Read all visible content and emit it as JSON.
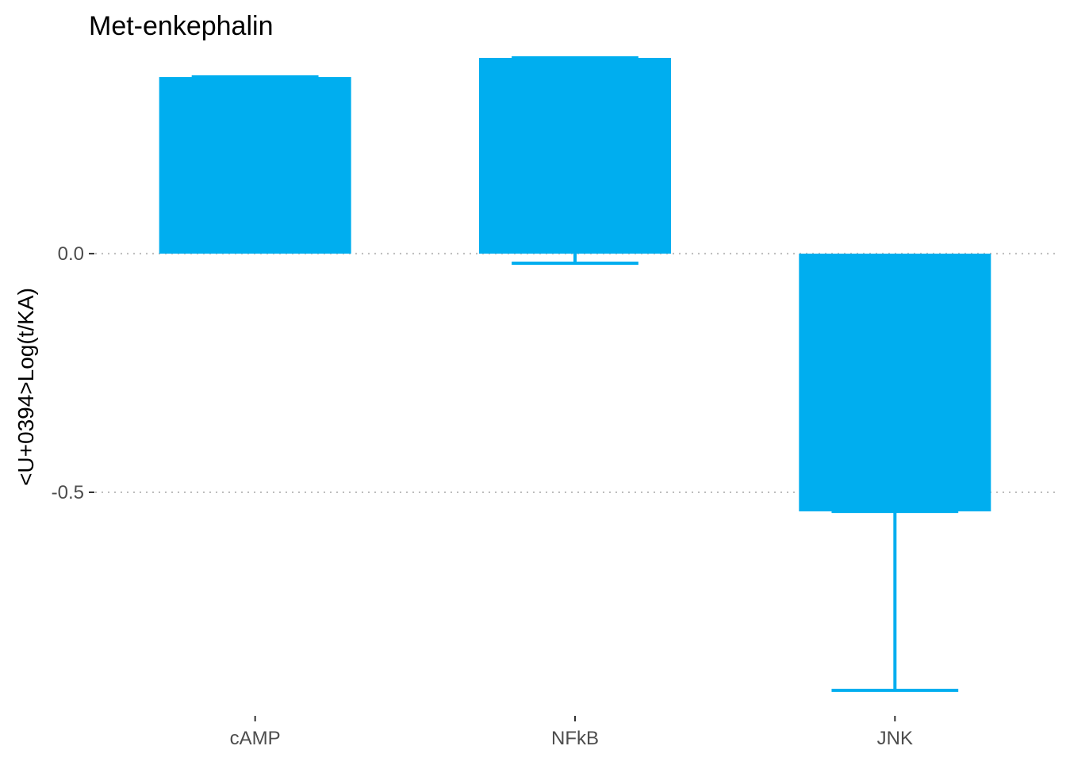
{
  "chart_data": {
    "type": "bar",
    "title": "Met-enkephalin",
    "xlabel": "",
    "ylabel": "<U+0394>Log(t/KA)",
    "categories": [
      "cAMP",
      "NFkB",
      "JNK"
    ],
    "values": [
      0.37,
      0.41,
      -0.54
    ],
    "error_low": [
      0.37,
      -0.02,
      -0.915
    ],
    "error_high": [
      0.37,
      0.41,
      -0.54
    ],
    "y_ticks": [
      0.0,
      -0.5
    ],
    "y_tick_labels": [
      "0.0",
      "-0.5"
    ],
    "ylim": [
      -0.955,
      0.415
    ],
    "grid": "horizontal dotted",
    "bar_color": "#00AEEF"
  }
}
